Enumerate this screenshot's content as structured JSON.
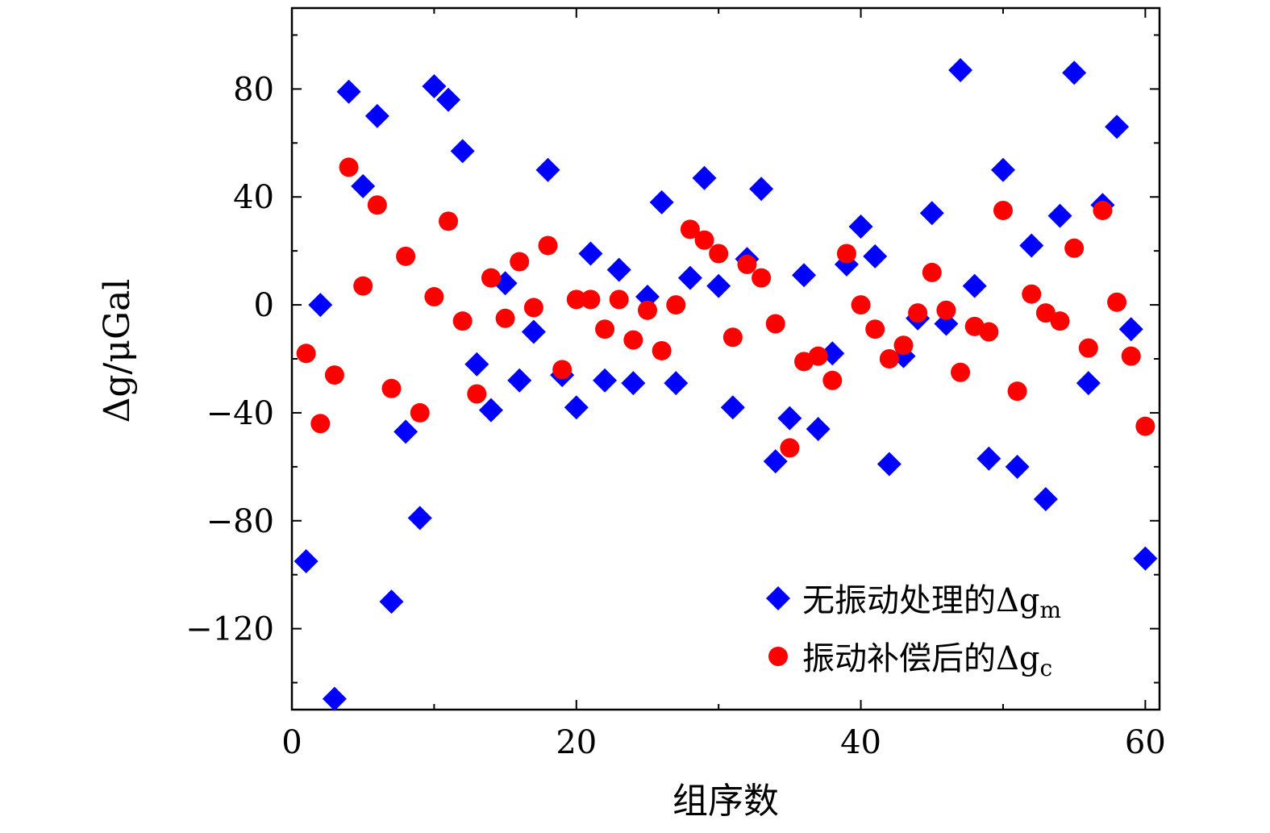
{
  "chart_data": {
    "type": "scatter",
    "xlabel": "组序数",
    "ylabel": "Δg/μGal",
    "xlim": [
      0,
      61
    ],
    "ylim": [
      -150,
      110
    ],
    "xticks": [
      0,
      20,
      40,
      60
    ],
    "yticks": [
      -120,
      -80,
      -40,
      0,
      40,
      80
    ],
    "ytick_labels": [
      "−120",
      "−80",
      "−40",
      "0",
      "40",
      "80"
    ],
    "grid": false,
    "legend_position": "bottom-right",
    "series": [
      {
        "name": "无振动处理的Δg",
        "name_subscript": "m",
        "marker": "diamond",
        "color": "#0000ff",
        "x": [
          1,
          2,
          3,
          4,
          5,
          6,
          7,
          8,
          9,
          10,
          11,
          12,
          13,
          14,
          15,
          16,
          17,
          18,
          19,
          20,
          21,
          22,
          23,
          24,
          25,
          26,
          27,
          28,
          29,
          30,
          31,
          32,
          33,
          34,
          35,
          36,
          37,
          38,
          39,
          40,
          41,
          42,
          43,
          44,
          45,
          46,
          47,
          48,
          49,
          50,
          51,
          52,
          53,
          54,
          55,
          56,
          57,
          58,
          59,
          60
        ],
        "y": [
          -95,
          0,
          -146,
          79,
          44,
          70,
          -110,
          -47,
          -79,
          81,
          76,
          57,
          -22,
          -39,
          8,
          -28,
          -10,
          50,
          -26,
          -38,
          19,
          -28,
          13,
          -29,
          3,
          38,
          -29,
          10,
          47,
          7,
          -38,
          17,
          43,
          -58,
          -42,
          11,
          -46,
          -18,
          15,
          29,
          18,
          -59,
          -19,
          -5,
          34,
          -7,
          87,
          7,
          -57,
          50,
          -60,
          22,
          -72,
          33,
          86,
          -29,
          37,
          66,
          -9,
          -94
        ]
      },
      {
        "name": "振动补偿后的Δg",
        "name_subscript": "c",
        "marker": "circle",
        "color": "#ff0000",
        "x": [
          1,
          2,
          3,
          4,
          5,
          6,
          7,
          8,
          9,
          10,
          11,
          12,
          13,
          14,
          15,
          16,
          17,
          18,
          19,
          20,
          21,
          22,
          23,
          24,
          25,
          26,
          27,
          28,
          29,
          30,
          31,
          32,
          33,
          34,
          35,
          36,
          37,
          38,
          39,
          40,
          41,
          42,
          43,
          44,
          45,
          46,
          47,
          48,
          49,
          50,
          51,
          52,
          53,
          54,
          55,
          56,
          57,
          58,
          59,
          60
        ],
        "y": [
          -18,
          -44,
          -26,
          51,
          7,
          37,
          -31,
          18,
          -40,
          3,
          31,
          -6,
          -33,
          10,
          -5,
          16,
          -1,
          22,
          -24,
          2,
          2,
          -9,
          2,
          -13,
          -2,
          -17,
          0,
          28,
          24,
          19,
          -12,
          15,
          10,
          -7,
          -53,
          -21,
          -19,
          -28,
          19,
          0,
          -9,
          -20,
          -15,
          -3,
          12,
          -2,
          -25,
          -8,
          -10,
          35,
          -32,
          4,
          -3,
          -6,
          21,
          -16,
          35,
          1,
          -19,
          -45
        ]
      }
    ]
  }
}
